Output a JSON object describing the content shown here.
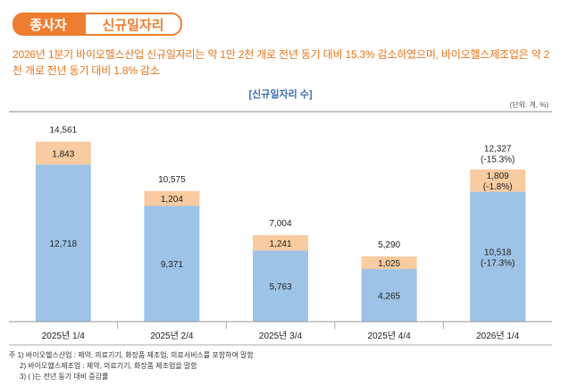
{
  "header": {
    "tag_left": "종사자",
    "tag_right": "신규일자리"
  },
  "headline": "2026년 1분기 바이오헬스산업 신규일자리는 약 1만 2천 개로 전년 동기 대비 15.3% 감소하였으며, 바이오헬스제조업은 약 2천 개로 전년 동기 대비 1.8% 감소",
  "colors": {
    "accent": "#ed7d31",
    "bar_blue": "#9dc3e6",
    "bar_peach": "#f8cba0",
    "title_blue": "#3a6db5"
  },
  "chart_data": {
    "type": "bar",
    "stacked": true,
    "title": "[신규일자리 수]",
    "unit_label": "(단위: 개, %)",
    "categories": [
      "2025년 1/4",
      "2025년 2/4",
      "2025년 3/4",
      "2025년 4/4",
      "2026년 1/4"
    ],
    "series": [
      {
        "values": [
          12718,
          9371,
          5763,
          4265,
          10518
        ],
        "labels": [
          "12,718",
          "9,371",
          "5,763",
          "4,265",
          "10,518"
        ],
        "sub_labels": [
          "",
          "",
          "",
          "",
          "(-17.3%)"
        ]
      },
      {
        "values": [
          1843,
          1204,
          1241,
          1025,
          1809
        ],
        "labels": [
          "1,843",
          "1,204",
          "1,241",
          "1,025",
          "1,809"
        ],
        "sub_labels": [
          "",
          "",
          "",
          "",
          "(-1.8%)"
        ]
      }
    ],
    "totals": [
      14561,
      10575,
      7004,
      5290,
      12327
    ],
    "total_labels": [
      "14,561",
      "10,575",
      "7,004",
      "5,290",
      "12,327"
    ],
    "total_sub_labels": [
      "",
      "",
      "",
      "",
      "(-15.3%)"
    ],
    "ylim": [
      0,
      17000
    ]
  },
  "footnotes": [
    "주 1) 바이오헬스산업 : 제약, 의료기기, 화장품 제조업, 의료서비스를 포함하여 말함",
    "2) 바이오헬스제조업 : 제약, 의료기기, 화장품 제조업을 말함",
    "3) (  )는 전년 동기 대비 증감률"
  ]
}
